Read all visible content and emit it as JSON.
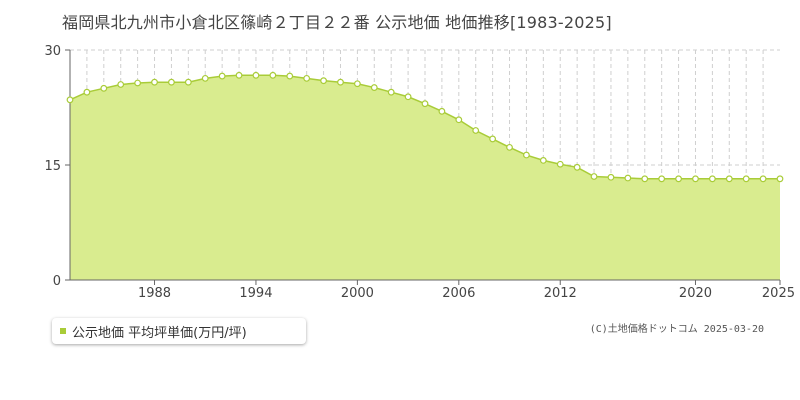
{
  "chart_data": {
    "type": "area",
    "title": "福岡県北九州市小倉北区篠崎２丁目２２番 公示地価 地価推移[1983-2025]",
    "xlabel": "",
    "ylabel": "",
    "x_tick_labels": [
      "1988",
      "1994",
      "2000",
      "2006",
      "2012",
      "2020",
      "2025"
    ],
    "x_ticks": [
      1988,
      1994,
      2000,
      2006,
      2012,
      2020,
      2025
    ],
    "y_tick_labels": [
      "0",
      "15",
      "30"
    ],
    "y_ticks": [
      0,
      15,
      30
    ],
    "xlim": [
      1983,
      2025
    ],
    "ylim": [
      0,
      30
    ],
    "grid": true,
    "legend_position": "bottom-left",
    "series": [
      {
        "name": "公示地価 平均坪単価(万円/坪)",
        "color": "#a9cc38",
        "fill": "#d9ec8f",
        "x": [
          1983,
          1984,
          1985,
          1986,
          1987,
          1988,
          1989,
          1990,
          1991,
          1992,
          1993,
          1994,
          1995,
          1996,
          1997,
          1998,
          1999,
          2000,
          2001,
          2002,
          2003,
          2004,
          2005,
          2006,
          2007,
          2008,
          2009,
          2010,
          2011,
          2012,
          2013,
          2014,
          2015,
          2016,
          2017,
          2018,
          2019,
          2020,
          2021,
          2022,
          2023,
          2024,
          2025
        ],
        "values": [
          23.5,
          24.5,
          25.0,
          25.5,
          25.7,
          25.8,
          25.8,
          25.8,
          26.3,
          26.6,
          26.7,
          26.7,
          26.7,
          26.6,
          26.3,
          26.0,
          25.8,
          25.6,
          25.1,
          24.5,
          23.9,
          23.0,
          22.0,
          20.9,
          19.5,
          18.4,
          17.3,
          16.3,
          15.6,
          15.1,
          14.7,
          13.5,
          13.4,
          13.3,
          13.2,
          13.2,
          13.2,
          13.2,
          13.2,
          13.2,
          13.2,
          13.2,
          13.2
        ]
      }
    ]
  },
  "legend": {
    "label": "公示地価 平均坪単価(万円/坪)",
    "marker_color": "#a9cc38"
  },
  "copyright": "(C)土地価格ドットコム 2025-03-20"
}
